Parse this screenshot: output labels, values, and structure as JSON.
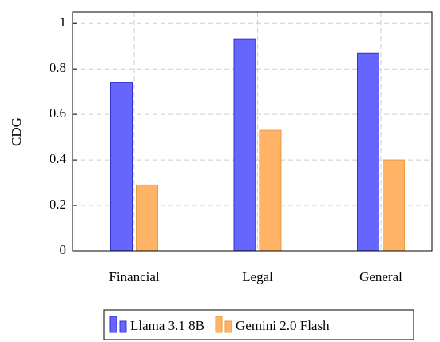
{
  "chart_data": {
    "type": "bar",
    "y_label": "CDG",
    "categories": [
      "Financial",
      "Legal",
      "General"
    ],
    "series": [
      {
        "name": "Llama 3.1 8B",
        "color": "#6666ff",
        "values": [
          0.74,
          0.93,
          0.87
        ]
      },
      {
        "name": "Gemini 2.0 Flash",
        "color": "#ffb366",
        "values": [
          0.29,
          0.53,
          0.4
        ]
      }
    ],
    "ylim": [
      0,
      1.05
    ],
    "yticks": [
      0,
      0.2,
      0.4,
      0.6,
      0.8,
      1
    ],
    "grid": true,
    "legend": "bottom"
  }
}
